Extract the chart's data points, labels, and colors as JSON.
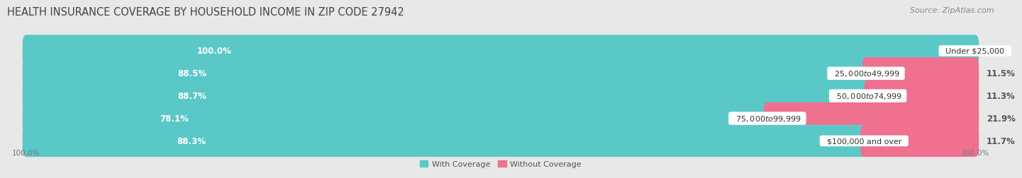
{
  "title": "HEALTH INSURANCE COVERAGE BY HOUSEHOLD INCOME IN ZIP CODE 27942",
  "source": "Source: ZipAtlas.com",
  "categories": [
    "Under $25,000",
    "$25,000 to $49,999",
    "$50,000 to $74,999",
    "$75,000 to $99,999",
    "$100,000 and over"
  ],
  "with_coverage": [
    100.0,
    88.5,
    88.7,
    78.1,
    88.3
  ],
  "without_coverage": [
    0.0,
    11.5,
    11.3,
    21.9,
    11.7
  ],
  "color_with": "#5BC8C8",
  "color_without": "#F07090",
  "bg_color": "#e8e8e8",
  "bar_bg_color": "#ffffff",
  "title_fontsize": 10.5,
  "source_fontsize": 8,
  "label_fontsize": 8.5,
  "bar_height": 0.62,
  "total_width": 100.0
}
